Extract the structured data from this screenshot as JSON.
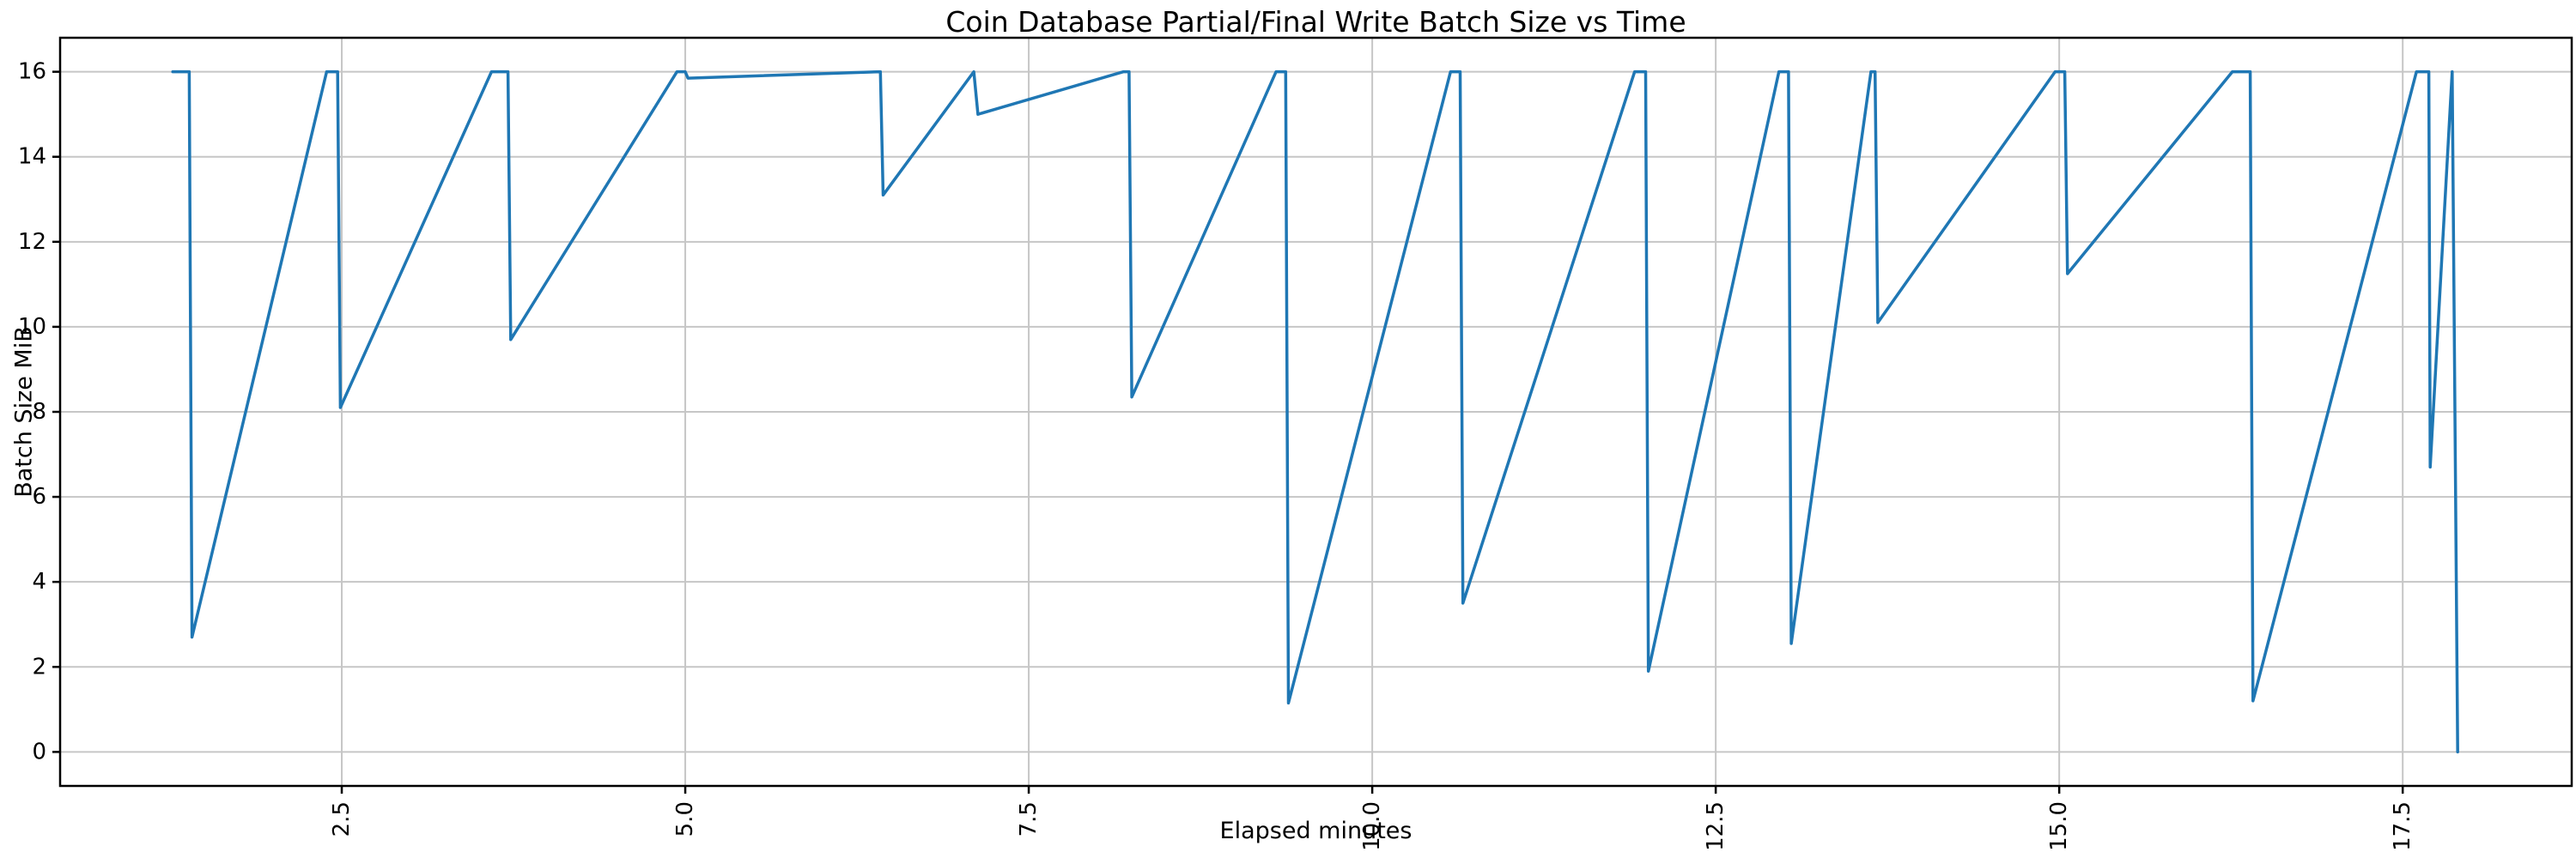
{
  "figure": {
    "title": "Coin Database Partial/Final Write Batch Size vs Time",
    "xlabel": "Elapsed minutes",
    "ylabel": "Batch Size MiB"
  },
  "chart_data": {
    "type": "line",
    "title": "Coin Database Partial/Final Write Batch Size vs Time",
    "xlabel": "Elapsed minutes",
    "ylabel": "Batch Size MiB",
    "xlim": [
      0.45,
      18.73
    ],
    "ylim": [
      -0.8,
      16.8
    ],
    "grid": true,
    "legend_position": "none",
    "x_ticks": [
      2.5,
      5.0,
      7.5,
      10.0,
      12.5,
      15.0,
      17.5
    ],
    "x_tick_labels": [
      "2.5",
      "5.0",
      "7.5",
      "10.0",
      "12.5",
      "15.0",
      "17.5"
    ],
    "y_ticks": [
      0,
      2,
      4,
      6,
      8,
      10,
      12,
      14,
      16
    ],
    "y_tick_labels": [
      "0",
      "2",
      "4",
      "6",
      "8",
      "10",
      "12",
      "14",
      "16"
    ],
    "colors": {
      "line": "#1f77b4",
      "grid": "#c6c6c6",
      "spine": "#000000",
      "tick_text": "#000000"
    },
    "series": [
      {
        "name": "batch-size-mib",
        "color": "#1f77b4",
        "points": [
          [
            1.27,
            16
          ],
          [
            1.39,
            16
          ],
          [
            1.41,
            2.7
          ],
          [
            2.39,
            16
          ],
          [
            2.47,
            16
          ],
          [
            2.49,
            8.1
          ],
          [
            3.59,
            16
          ],
          [
            3.71,
            16
          ],
          [
            3.73,
            9.7
          ],
          [
            4.94,
            16
          ],
          [
            5.0,
            16
          ],
          [
            5.02,
            15.85
          ],
          [
            6.42,
            16
          ],
          [
            6.44,
            13.1
          ],
          [
            7.1,
            16
          ],
          [
            7.13,
            15.0
          ],
          [
            8.19,
            16
          ],
          [
            8.23,
            16
          ],
          [
            8.25,
            8.35
          ],
          [
            9.3,
            16
          ],
          [
            9.37,
            16
          ],
          [
            9.39,
            1.15
          ],
          [
            10.57,
            16
          ],
          [
            10.64,
            16
          ],
          [
            10.66,
            3.5
          ],
          [
            11.91,
            16
          ],
          [
            11.99,
            16
          ],
          [
            12.01,
            1.9
          ],
          [
            12.96,
            16
          ],
          [
            13.03,
            16
          ],
          [
            13.05,
            2.55
          ],
          [
            13.63,
            16
          ],
          [
            13.66,
            16
          ],
          [
            13.68,
            10.1
          ],
          [
            14.97,
            16
          ],
          [
            15.04,
            16
          ],
          [
            15.06,
            11.25
          ],
          [
            16.26,
            16
          ],
          [
            16.39,
            16
          ],
          [
            16.41,
            1.2
          ],
          [
            17.6,
            16
          ],
          [
            17.69,
            16
          ],
          [
            17.7,
            6.7
          ],
          [
            17.86,
            16
          ],
          [
            17.9,
            0
          ]
        ]
      }
    ]
  }
}
